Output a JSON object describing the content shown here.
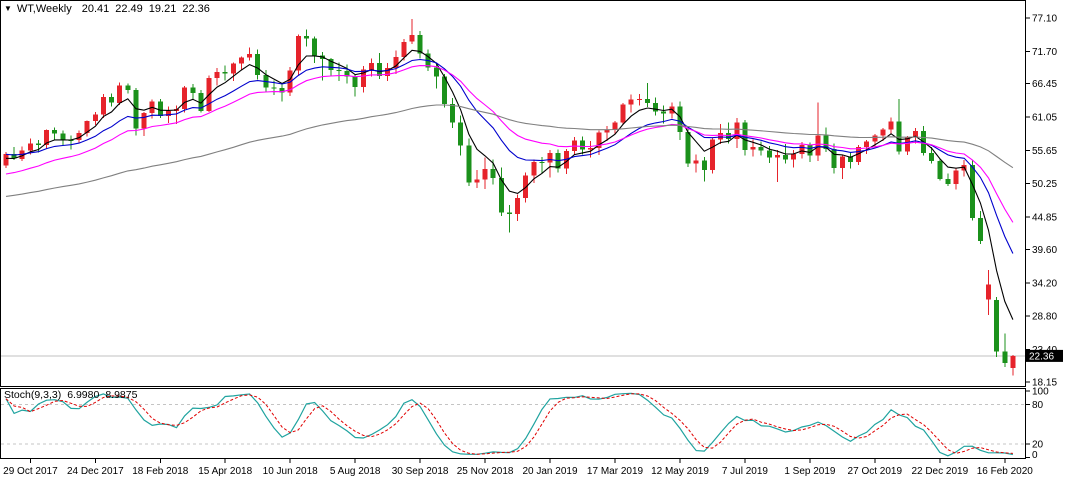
{
  "header": {
    "dropdown_icon": "▼",
    "symbol_period": "WT,Weekly",
    "open": "20.41",
    "high": "22.49",
    "low": "19.21",
    "close": "22.36"
  },
  "indicator": {
    "label": "Stoch(9,3,3)",
    "k_value": "6.9980",
    "d_value": "8.9875"
  },
  "price_axis": {
    "tick_values": [
      77.1,
      71.7,
      66.45,
      61.05,
      55.65,
      50.25,
      44.85,
      39.6,
      34.2,
      28.8,
      23.4,
      18.15
    ],
    "current_price": 22.36,
    "current_price_label": "22.36"
  },
  "time_axis": {
    "labels": [
      "29 Oct 2017",
      "24 Dec 2017",
      "18 Feb 2018",
      "15 Apr 2018",
      "10 Jun 2018",
      "5 Aug 2018",
      "30 Sep 2018",
      "25 Nov 2018",
      "20 Jan 2019",
      "17 Mar 2019",
      "12 May 2019",
      "7 Jul 2019",
      "1 Sep 2019",
      "27 Oct 2019",
      "22 Dec 2019",
      "16 Feb 2020"
    ]
  },
  "colors": {
    "background": "#FFFFFF",
    "border": "#000000",
    "bull_candle": "#E6232B",
    "bear_candle": "#1B911B",
    "ma_fast": "#000000",
    "ma_mid": "#0000CD",
    "ma_slow": "#FF00FF",
    "ma_long": "#808080",
    "stoch_k": "#1FA39F",
    "stoch_d": "#E00000",
    "level_line": "#C4C4C4",
    "current_price_line": "#C0C0C0",
    "price_badge_bg": "#000000",
    "price_badge_text": "#FFFFFF",
    "text": "#000000"
  },
  "chart_data": {
    "type": "candlestick",
    "title": "WT,Weekly",
    "x_tick_label_indices": [
      3,
      11,
      19,
      27,
      35,
      43,
      51,
      59,
      67,
      75,
      83,
      91,
      99,
      107,
      115,
      123
    ],
    "open": [
      53.2,
      55.1,
      54.3,
      55.64,
      56.74,
      56.55,
      58.95,
      58.36,
      57.36,
      57.3,
      58.47,
      60.42,
      61.44,
      64.3,
      63.37,
      66.14,
      65.45,
      59.2,
      61.68,
      63.55,
      61.25,
      62.04,
      62.34,
      65.88,
      64.94,
      62.06,
      67.39,
      68.38,
      68.1,
      69.72,
      70.7,
      71.28,
      67.88,
      65.81,
      65.74,
      65.06,
      68.58,
      74.15,
      73.8,
      71.01,
      70.46,
      68.69,
      68.49,
      67.63,
      65.91,
      68.72,
      69.8,
      67.75,
      68.99,
      70.78,
      73.25,
      74.34,
      71.34,
      69.12,
      67.59,
      63.14,
      60.19,
      56.46,
      50.42,
      50.93,
      52.61,
      51.2,
      45.59,
      45.33,
      47.96,
      51.59,
      53.8,
      53.69,
      55.26,
      52.72,
      55.59,
      57.26,
      55.8,
      56.07,
      58.52,
      58.97,
      60.14,
      63.08,
      63.89,
      64.0,
      63.3,
      61.94,
      61.66,
      62.76,
      58.63,
      53.5,
      53.99,
      52.51,
      57.43,
      58.47,
      57.51,
      60.21,
      55.76,
      56.2,
      55.66,
      54.5,
      54.87,
      54.17,
      55.1,
      56.52,
      54.85,
      58.09,
      55.91,
      52.81,
      54.7,
      53.78,
      56.2,
      57.1,
      58.1,
      59.0,
      60.3,
      55.5,
      57.8,
      58.8,
      55.2,
      53.9,
      51.0,
      50.2,
      52.4,
      53.3,
      44.7,
      31.5,
      31.4,
      23.1,
      20.41
    ],
    "high": [
      55.4,
      56.2,
      56.3,
      57.6,
      57.3,
      59.05,
      59.4,
      58.9,
      58.1,
      58.9,
      60.5,
      61.9,
      64.8,
      64.9,
      66.66,
      66.5,
      65.8,
      61.9,
      63.9,
      64.0,
      62.8,
      62.9,
      66.1,
      66.4,
      65.4,
      67.8,
      69.0,
      69.4,
      69.9,
      70.9,
      72.3,
      72.0,
      68.7,
      67.0,
      66.4,
      69.2,
      74.46,
      75.27,
      74.1,
      71.6,
      70.6,
      69.9,
      69.6,
      68.0,
      69.3,
      70.5,
      71.4,
      69.8,
      71.8,
      73.7,
      76.9,
      75.0,
      72.0,
      69.9,
      68.0,
      64.1,
      61.3,
      57.6,
      52.5,
      54.5,
      54.2,
      52.9,
      46.8,
      48.5,
      52.1,
      54.2,
      54.6,
      55.7,
      55.8,
      55.9,
      57.8,
      57.9,
      57.2,
      58.9,
      59.6,
      60.4,
      63.3,
      64.7,
      64.8,
      66.6,
      64.2,
      62.9,
      63.4,
      63.6,
      59.3,
      55.0,
      54.6,
      57.7,
      59.9,
      60.2,
      60.9,
      60.6,
      57.4,
      57.1,
      56.4,
      55.7,
      56.7,
      55.7,
      57.0,
      56.9,
      63.38,
      59.4,
      56.8,
      54.9,
      55.3,
      56.5,
      57.3,
      58.3,
      59.3,
      61.0,
      64.0,
      58.0,
      59.3,
      59.6,
      56.2,
      54.3,
      51.9,
      52.8,
      54.1,
      54.0,
      45.8,
      36.3,
      31.9,
      26.0,
      22.49
    ],
    "low": [
      52.8,
      54.1,
      53.9,
      55.0,
      55.3,
      55.9,
      57.3,
      56.5,
      55.8,
      56.9,
      57.9,
      59.8,
      60.9,
      62.8,
      63.0,
      64.9,
      58.07,
      58.0,
      60.8,
      60.9,
      60.1,
      59.9,
      61.8,
      63.9,
      61.8,
      61.9,
      66.2,
      67.0,
      66.9,
      68.6,
      70.2,
      67.1,
      65.1,
      64.6,
      63.6,
      64.5,
      67.9,
      72.5,
      69.8,
      67.0,
      67.7,
      66.9,
      66.5,
      64.4,
      65.0,
      67.6,
      67.2,
      66.9,
      68.0,
      70.2,
      72.9,
      70.5,
      68.5,
      65.7,
      62.6,
      59.3,
      54.8,
      49.9,
      49.6,
      49.4,
      50.1,
      45.0,
      42.36,
      44.2,
      47.2,
      50.4,
      51.9,
      51.3,
      52.1,
      51.8,
      55.0,
      55.0,
      54.5,
      54.9,
      57.2,
      58.2,
      59.8,
      61.8,
      62.9,
      62.7,
      61.3,
      60.0,
      60.8,
      57.3,
      53.0,
      52.1,
      50.6,
      51.9,
      56.7,
      56.8,
      56.0,
      54.8,
      54.7,
      54.8,
      53.6,
      50.5,
      53.5,
      52.9,
      54.3,
      53.8,
      53.9,
      55.4,
      51.9,
      50.99,
      52.7,
      53.3,
      55.1,
      56.0,
      57.2,
      58.2,
      55.0,
      54.9,
      56.8,
      54.8,
      53.5,
      50.8,
      49.9,
      49.3,
      51.4,
      44.3,
      40.5,
      29.0,
      22.2,
      20.6,
      19.21
    ],
    "close": [
      55.1,
      54.3,
      55.64,
      56.74,
      56.55,
      58.95,
      58.36,
      57.36,
      57.3,
      58.47,
      60.42,
      61.44,
      64.3,
      63.37,
      66.14,
      65.45,
      59.2,
      61.68,
      63.55,
      61.25,
      62.04,
      62.34,
      65.88,
      64.94,
      62.06,
      67.39,
      68.38,
      68.1,
      69.72,
      70.7,
      71.28,
      67.88,
      65.81,
      65.74,
      65.06,
      68.58,
      74.15,
      73.8,
      71.01,
      70.46,
      68.69,
      68.49,
      67.63,
      65.91,
      68.72,
      69.8,
      67.75,
      68.99,
      70.78,
      73.25,
      74.34,
      71.34,
      69.12,
      67.59,
      63.14,
      60.19,
      56.46,
      50.42,
      50.93,
      52.61,
      51.2,
      45.59,
      45.33,
      47.96,
      51.59,
      53.8,
      53.69,
      55.26,
      52.72,
      55.59,
      57.26,
      55.8,
      56.07,
      58.52,
      58.97,
      60.14,
      63.08,
      63.89,
      64.0,
      63.3,
      61.94,
      61.66,
      62.76,
      58.63,
      53.5,
      53.99,
      52.51,
      57.43,
      58.47,
      57.51,
      60.21,
      55.76,
      56.2,
      55.66,
      54.5,
      54.87,
      54.17,
      55.1,
      56.52,
      54.85,
      58.09,
      55.91,
      52.81,
      54.7,
      53.78,
      56.2,
      57.1,
      58.1,
      59.0,
      60.3,
      55.5,
      57.8,
      58.8,
      55.2,
      53.9,
      51.0,
      50.2,
      52.4,
      53.3,
      44.7,
      41.0,
      33.9,
      23.1,
      21.2,
      22.36
    ],
    "moving_averages": [
      {
        "name": "ma-fast",
        "type": "ema",
        "period": 5,
        "seed": 54.0
      },
      {
        "name": "ma-mid",
        "type": "ema",
        "period": 13,
        "seed": 55.0
      },
      {
        "name": "ma-slow",
        "type": "ema",
        "period": 21,
        "seed": 51.5
      },
      {
        "name": "ma-long",
        "type": "ema",
        "period": 70,
        "seed": 48.0
      }
    ],
    "stochastic": {
      "k_period": 9,
      "slowing": 3,
      "d_period": 3,
      "levels": [
        80,
        20
      ],
      "scale_values": [
        100,
        80,
        20,
        0
      ],
      "scale_labels": [
        "100",
        "80",
        "20",
        "0"
      ]
    },
    "y_range": {
      "min": 17.4,
      "max": 78.8
    },
    "grid": "off",
    "legend_position": "none"
  }
}
